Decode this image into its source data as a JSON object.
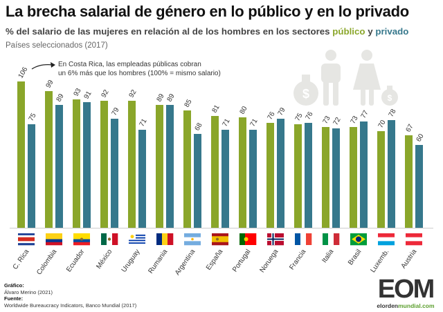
{
  "title": "La brecha salarial de género en lo público y en lo privado",
  "subtitle_prefix": "% del salario de las mujeres en relación al de los hombres en los sectores",
  "subtitle_public": "público",
  "subtitle_and": "y",
  "subtitle_private": "privado",
  "note": "Países seleccionados (2017)",
  "annotation_line1": "En Costa Rica, las empleadas públicas cobran",
  "annotation_line2": "un 6% más que los hombres (100% = mismo salario)",
  "credits": {
    "grafico_label": "Gráfico:",
    "grafico": "Álvaro Merino (2021)",
    "fuente_label": "Fuente:",
    "fuente": "Worldwide Bureaucracy Indicators, Banco Mundial (2017)"
  },
  "logo": {
    "letters": "EOM",
    "url_a": "elorden",
    "url_b": "mundial.com"
  },
  "colors": {
    "public": "#8aa62a",
    "private": "#36788c",
    "icons": "#e6e6e3"
  },
  "chart_data": {
    "type": "bar",
    "categories": [
      "C. Rica",
      "Colombia",
      "Ecuador",
      "México",
      "Uruguay",
      "Rumania",
      "Argentina",
      "España",
      "Portugal",
      "Noruega",
      "Francia",
      "Italia",
      "Brasil",
      "Luxemb.",
      "Austria"
    ],
    "series": [
      {
        "name": "público",
        "values": [
          106,
          99,
          93,
          92,
          92,
          89,
          85,
          81,
          80,
          76,
          75,
          73,
          73,
          70,
          67
        ]
      },
      {
        "name": "privado",
        "values": [
          75,
          89,
          91,
          79,
          71,
          89,
          68,
          71,
          71,
          79,
          76,
          72,
          77,
          78,
          60
        ]
      }
    ],
    "ylim": [
      0,
      110
    ],
    "grid": false,
    "data_labels": true,
    "flags": [
      "costa-rica",
      "colombia",
      "ecuador",
      "mexico",
      "uruguay",
      "romania",
      "argentina",
      "spain",
      "portugal",
      "norway",
      "france",
      "italy",
      "brazil",
      "luxembourg",
      "austria"
    ]
  }
}
